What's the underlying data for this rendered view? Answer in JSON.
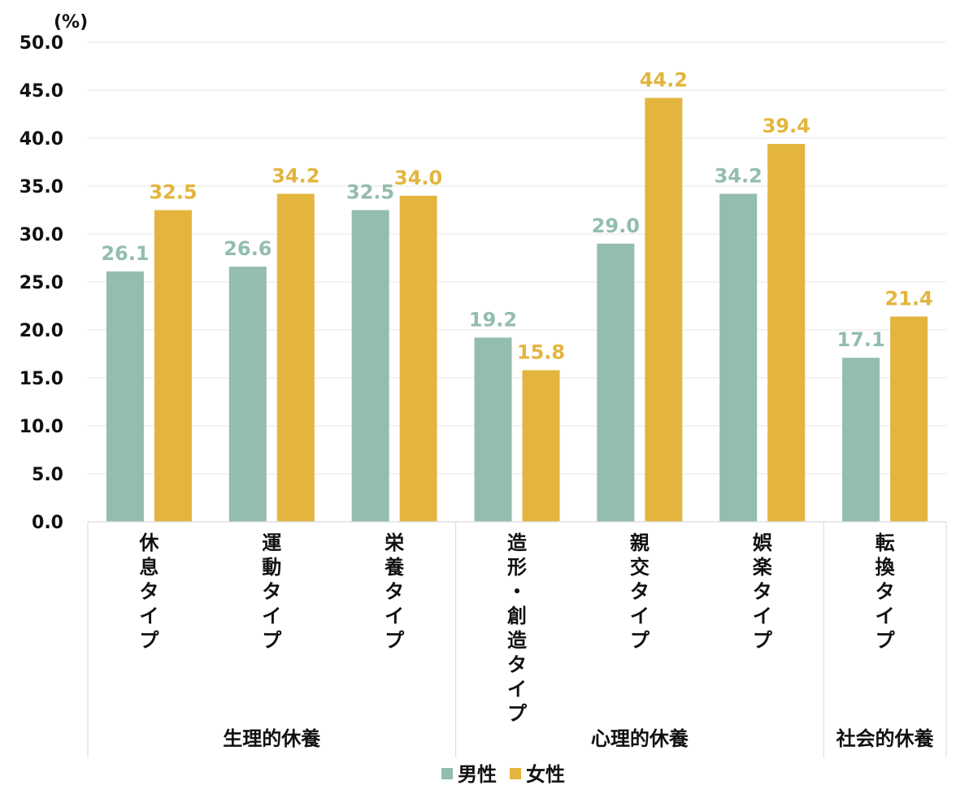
{
  "chart_data": {
    "type": "bar",
    "unit_label": "(%)",
    "ylim": [
      0,
      50
    ],
    "yticks": [
      "0.0",
      "5.0",
      "10.0",
      "15.0",
      "20.0",
      "25.0",
      "30.0",
      "35.0",
      "40.0",
      "45.0",
      "50.0"
    ],
    "categories": [
      "休息タイプ",
      "運動タイプ",
      "栄養タイプ",
      "造形・創造タイプ",
      "親交タイプ",
      "娯楽タイプ",
      "転換タイプ"
    ],
    "groups": [
      {
        "label": "生理的休養",
        "categories": [
          "休息タイプ",
          "運動タイプ",
          "栄養タイプ"
        ]
      },
      {
        "label": "心理的休養",
        "categories": [
          "造形・創造タイプ",
          "親交タイプ",
          "娯楽タイプ"
        ]
      },
      {
        "label": "社会的休養",
        "categories": [
          "転換タイプ"
        ]
      }
    ],
    "series": [
      {
        "name": "男性",
        "color": "#93bdad",
        "values": [
          26.1,
          26.6,
          32.5,
          19.2,
          29.0,
          34.2,
          17.1
        ]
      },
      {
        "name": "女性",
        "color": "#e3b53e",
        "values": [
          32.5,
          34.2,
          34.0,
          15.8,
          44.2,
          39.4,
          21.4
        ]
      }
    ],
    "grid": true,
    "legend_position": "bottom-center"
  }
}
